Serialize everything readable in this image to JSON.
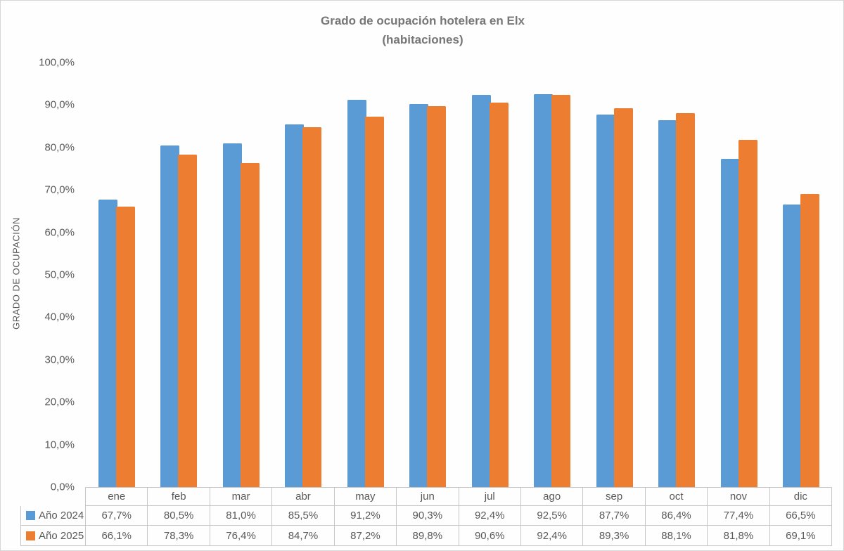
{
  "title": {
    "line1": "Grado de ocupación hotelera en Elx",
    "line2": "(habitaciones)"
  },
  "y_axis": {
    "title": "GRADO DE OCUPACIÓN",
    "tick_labels": [
      "100,0%",
      "90,0%",
      "80,0%",
      "70,0%",
      "60,0%",
      "50,0%",
      "40,0%",
      "30,0%",
      "20,0%",
      "10,0%",
      "0,0%"
    ]
  },
  "chart_data": {
    "type": "bar",
    "title": "Grado de ocupación hotelera en Elx (habitaciones)",
    "xlabel": "",
    "ylabel": "GRADO DE OCUPACIÓN",
    "ylim": [
      0,
      100
    ],
    "y_tick_step": 10,
    "grid": false,
    "legend_position": "data-table-left",
    "categories": [
      "ene",
      "feb",
      "mar",
      "abr",
      "may",
      "jun",
      "jul",
      "ago",
      "sep",
      "oct",
      "nov",
      "dic"
    ],
    "series": [
      {
        "name": "Año 2024",
        "color": "#5B9BD5",
        "values": [
          67.7,
          80.5,
          81.0,
          85.5,
          91.2,
          90.3,
          92.4,
          92.5,
          87.7,
          86.4,
          77.4,
          66.5
        ],
        "labels": [
          "67,7%",
          "80,5%",
          "81,0%",
          "85,5%",
          "91,2%",
          "90,3%",
          "92,4%",
          "92,5%",
          "87,7%",
          "86,4%",
          "77,4%",
          "66,5%"
        ]
      },
      {
        "name": "Año 2025",
        "color": "#ED7D31",
        "values": [
          66.1,
          78.3,
          76.4,
          84.7,
          87.2,
          89.8,
          90.6,
          92.4,
          89.3,
          88.1,
          81.8,
          69.1
        ],
        "labels": [
          "66,1%",
          "78,3%",
          "76,4%",
          "84,7%",
          "87,2%",
          "89,8%",
          "90,6%",
          "92,4%",
          "89,3%",
          "88,1%",
          "81,8%",
          "69,1%"
        ]
      }
    ]
  }
}
